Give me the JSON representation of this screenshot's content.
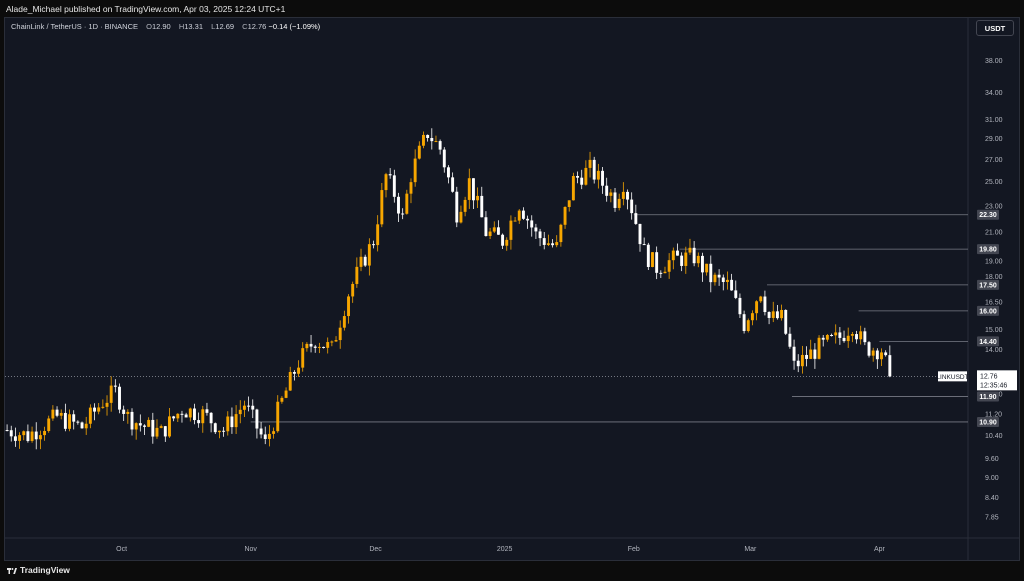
{
  "header": {
    "publisher_line": "Alade_Michael published on TradingView.com, Apr 03, 2025 12:24 UTC+1"
  },
  "legend": {
    "symbol_text": "ChainLink / TetherUS · 1D · BINANCE",
    "open_label": "O",
    "open": "12.90",
    "high_label": "H",
    "high": "13.31",
    "low_label": "L",
    "low": "12.69",
    "close_label": "C",
    "close": "12.76",
    "change": "−0.14 (−1.09%)"
  },
  "currency_button": "USDT",
  "footer": {
    "brand": "TradingView",
    "logo_icon": "tradingview-logo-icon"
  },
  "colors": {
    "up": "#f7a600",
    "down": "#ffffff",
    "background": "#131722",
    "line": "#787b86"
  },
  "chart_data": {
    "type": "candlestick",
    "symbol": "LINKUSDT",
    "interval": "1D",
    "y_scale": "log",
    "ylim": [
      7.3,
      44
    ],
    "y_ticks": [
      "7.85",
      "8.40",
      "9.00",
      "9.60",
      "10.40",
      "11.20",
      "12.00",
      "14.00",
      "15.00",
      "16.50",
      "18.00",
      "19.00",
      "21.00",
      "23.00",
      "25.00",
      "27.00",
      "29.00",
      "31.00",
      "34.00",
      "38.00"
    ],
    "x_labels": [
      {
        "label": "Oct",
        "date": "2024-10-01"
      },
      {
        "label": "Nov",
        "date": "2024-11-01"
      },
      {
        "label": "Dec",
        "date": "2024-12-01"
      },
      {
        "label": "2025",
        "date": "2025-01-01"
      },
      {
        "label": "Feb",
        "date": "2025-02-01"
      },
      {
        "label": "Mar",
        "date": "2025-03-01"
      },
      {
        "label": "Apr",
        "date": "2025-04-01"
      }
    ],
    "x_range": [
      "2024-09-03",
      "2025-05-05"
    ],
    "levels": [
      {
        "value": "22.30",
        "start": "2025-02-01"
      },
      {
        "value": "19.80",
        "start": "2025-02-12"
      },
      {
        "value": "17.50",
        "start": "2025-03-05"
      },
      {
        "value": "16.00",
        "start": "2025-03-27"
      },
      {
        "value": "14.40",
        "start": "2025-04-01"
      },
      {
        "value": "11.90",
        "start": "2025-03-11"
      },
      {
        "value": "10.90",
        "start": "2024-11-01"
      }
    ],
    "last_price": {
      "symbol": "LINKUSDT",
      "price": "12.76",
      "countdown": "12:35:46"
    },
    "anchors": [
      [
        "2024-09-03",
        10.6
      ],
      [
        "2024-09-08",
        10.4
      ],
      [
        "2024-09-15",
        11.1
      ],
      [
        "2024-09-21",
        10.7
      ],
      [
        "2024-09-26",
        11.7
      ],
      [
        "2024-09-29",
        12.1
      ],
      [
        "2024-10-02",
        11.1
      ],
      [
        "2024-10-05",
        10.8
      ],
      [
        "2024-10-10",
        10.5
      ],
      [
        "2024-10-15",
        11.4
      ],
      [
        "2024-10-20",
        11.2
      ],
      [
        "2024-10-25",
        10.6
      ],
      [
        "2024-10-30",
        11.6
      ],
      [
        "2024-11-04",
        10.1
      ],
      [
        "2024-11-08",
        11.7
      ],
      [
        "2024-11-12",
        13.4
      ],
      [
        "2024-11-16",
        14.5
      ],
      [
        "2024-11-20",
        14.0
      ],
      [
        "2024-11-24",
        17.0
      ],
      [
        "2024-11-30",
        20.4
      ],
      [
        "2024-12-03",
        25.5
      ],
      [
        "2024-12-05",
        24.0
      ],
      [
        "2024-12-07",
        22.0
      ],
      [
        "2024-12-09",
        25.6
      ],
      [
        "2024-12-13",
        29.6
      ],
      [
        "2024-12-16",
        28.0
      ],
      [
        "2024-12-20",
        22.5
      ],
      [
        "2024-12-23",
        25.0
      ],
      [
        "2024-12-27",
        21.0
      ],
      [
        "2024-12-31",
        20.4
      ],
      [
        "2025-01-04",
        23.2
      ],
      [
        "2025-01-08",
        20.8
      ],
      [
        "2025-01-13",
        19.9
      ],
      [
        "2025-01-17",
        25.1
      ],
      [
        "2025-01-21",
        26.1
      ],
      [
        "2025-01-24",
        24.8
      ],
      [
        "2025-01-27",
        23.5
      ],
      [
        "2025-01-29",
        25.0
      ],
      [
        "2025-02-03",
        19.6
      ],
      [
        "2025-02-06",
        18.6
      ],
      [
        "2025-02-10",
        19.1
      ],
      [
        "2025-02-15",
        19.3
      ],
      [
        "2025-02-19",
        17.9
      ],
      [
        "2025-02-23",
        17.5
      ],
      [
        "2025-02-27",
        15.3
      ],
      [
        "2025-03-03",
        17.2
      ],
      [
        "2025-03-05",
        15.6
      ],
      [
        "2025-03-08",
        15.6
      ],
      [
        "2025-03-11",
        13.2
      ],
      [
        "2025-03-17",
        14.1
      ],
      [
        "2025-03-22",
        14.6
      ],
      [
        "2025-03-25",
        15.3
      ],
      [
        "2025-03-28",
        14.1
      ],
      [
        "2025-04-01",
        14.0
      ],
      [
        "2025-04-03",
        12.76
      ]
    ]
  }
}
